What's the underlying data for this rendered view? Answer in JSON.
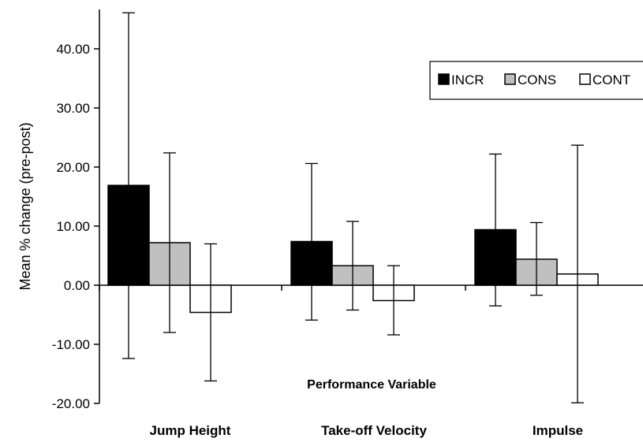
{
  "chart_data": {
    "type": "bar",
    "title": "",
    "xlabel": "Performance Variable",
    "ylabel": "Mean % change (pre-post)",
    "categories": [
      "Jump Height",
      "Take-off Velocity",
      "Impulse"
    ],
    "series": [
      {
        "name": "INCR",
        "color": "#000000",
        "values": [
          16.9,
          7.4,
          9.4
        ],
        "error_low": [
          -12.4,
          -5.9,
          -3.5
        ],
        "error_high": [
          46.1,
          20.6,
          22.2
        ]
      },
      {
        "name": "CONS",
        "color": "#c0c0c0",
        "values": [
          7.2,
          3.3,
          4.4
        ],
        "error_low": [
          -8.0,
          -4.2,
          -1.7
        ],
        "error_high": [
          22.4,
          10.8,
          10.6
        ]
      },
      {
        "name": "CONT",
        "color": "#ffffff",
        "values": [
          -4.6,
          -2.6,
          1.9
        ],
        "error_low": [
          -16.2,
          -8.4,
          -19.9
        ],
        "error_high": [
          7.0,
          3.3,
          23.7
        ]
      }
    ],
    "ylim": [
      -20,
      45
    ],
    "yticks": [
      "40.00",
      "30.00",
      "20.00",
      "10.00",
      "0.00",
      "-10.00",
      "-20.00"
    ],
    "ytick_values": [
      40,
      30,
      20,
      10,
      0,
      -10,
      -20
    ],
    "grid": false,
    "legend_position": "top-right"
  }
}
